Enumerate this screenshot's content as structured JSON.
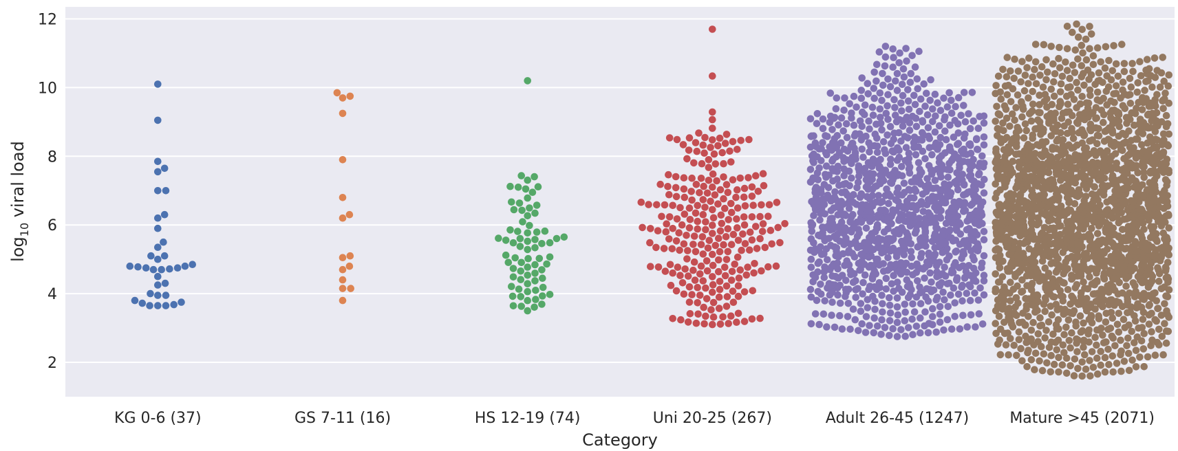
{
  "chart_data": {
    "type": "scatter",
    "style": "swarm",
    "title": "",
    "xlabel": "Category",
    "ylabel": "log10 viral load",
    "ylabel_parts": {
      "prefix": "log",
      "subscript": "10",
      "suffix": " viral load"
    },
    "ylim": [
      1.0,
      12.35
    ],
    "yticks": [
      2,
      4,
      6,
      8,
      10,
      12
    ],
    "grid": true,
    "background": "#eaeaf2",
    "categories": [
      "KG 0-6 (37)",
      "GS 7-11 (16)",
      "HS 12-19 (74)",
      "Uni 20-25 (267)",
      "Adult 26-45 (1247)",
      "Mature >45 (2071)"
    ],
    "series": [
      {
        "category": "KG 0-6 (37)",
        "color": "#4c72b0",
        "count": 37,
        "values": [
          10.1,
          9.05,
          7.85,
          7.65,
          7.55,
          7.0,
          7.0,
          6.3,
          6.2,
          5.9,
          5.5,
          5.35,
          5.1,
          5.1,
          5.0,
          4.85,
          4.8,
          4.8,
          4.78,
          4.75,
          4.75,
          4.72,
          4.7,
          4.7,
          4.5,
          4.3,
          4.25,
          4.0,
          3.95,
          3.95,
          3.8,
          3.75,
          3.72,
          3.68,
          3.65,
          3.65,
          3.65
        ]
      },
      {
        "category": "GS 7-11 (16)",
        "color": "#dd8452",
        "count": 16,
        "values": [
          9.85,
          9.75,
          9.7,
          9.25,
          7.9,
          6.8,
          6.3,
          6.2,
          5.1,
          5.05,
          4.8,
          4.7,
          4.4,
          4.15,
          4.15,
          3.8
        ]
      },
      {
        "category": "HS 12-19 (74)",
        "color": "#55a868",
        "count": 74,
        "summary": {
          "min": 3.5,
          "max": 10.2,
          "median": 5.0
        }
      },
      {
        "category": "Uni 20-25 (267)",
        "color": "#c44e52",
        "count": 267,
        "summary": {
          "min": 3.1,
          "max": 11.7,
          "median": 5.6
        }
      },
      {
        "category": "Adult 26-45 (1247)",
        "color": "#8172b3",
        "count": 1247,
        "summary": {
          "min": 2.75,
          "max": 11.2,
          "median": 6.2
        }
      },
      {
        "category": "Mature >45 (2071)",
        "color": "#937860",
        "count": 2071,
        "summary": {
          "min": 1.6,
          "max": 11.85,
          "median": 6.4
        }
      }
    ]
  }
}
